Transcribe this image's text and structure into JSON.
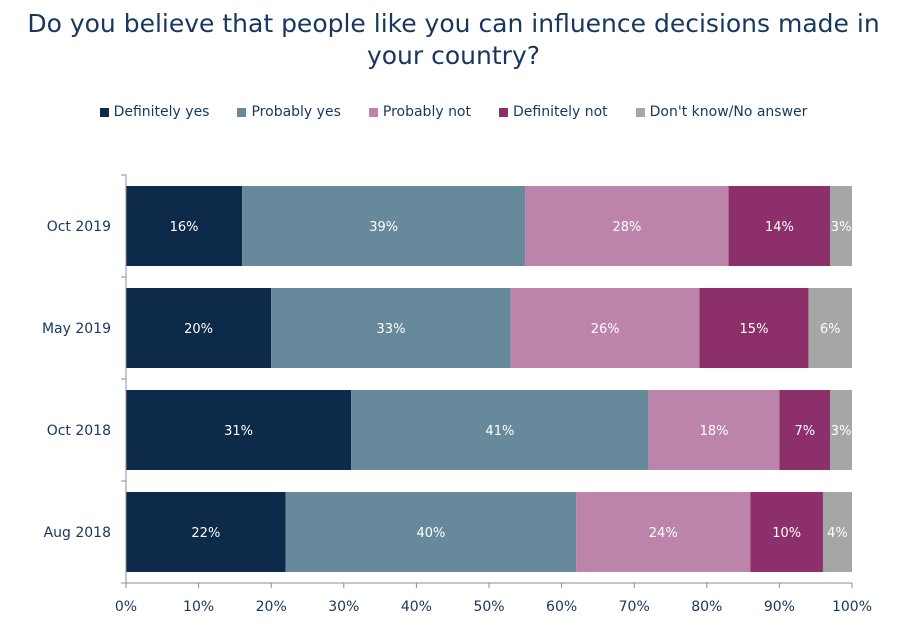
{
  "chart_data": {
    "type": "bar",
    "orientation": "horizontal",
    "stacked": true,
    "title": "Do you believe that people like you can influence decisions made in your country?",
    "categories": [
      "Oct 2019",
      "May 2019",
      "Oct 2018",
      "Aug 2018"
    ],
    "series": [
      {
        "name": "Definitely yes",
        "color": "#0e2a4a",
        "values": [
          16,
          20,
          31,
          22
        ],
        "labels": [
          "16%",
          "20%",
          "31%",
          "22%"
        ]
      },
      {
        "name": "Probably yes",
        "color": "#668a9c",
        "values": [
          39,
          33,
          41,
          40
        ],
        "labels": [
          "39%",
          "33%",
          "41%",
          "40%"
        ]
      },
      {
        "name": "Probably not",
        "color": "#bc84aa",
        "values": [
          28,
          26,
          18,
          24
        ],
        "labels": [
          "28%",
          "26%",
          "18%",
          "24%"
        ]
      },
      {
        "name": "Definitely not",
        "color": "#8c2f6b",
        "values": [
          14,
          15,
          7,
          10
        ],
        "labels": [
          "14%",
          "15%",
          "7%",
          "10%"
        ]
      },
      {
        "name": "Don't know/No answer",
        "color": "#a6a6a6",
        "values": [
          3,
          6,
          3,
          4
        ],
        "labels": [
          "3%",
          "6%",
          "3%",
          "4%"
        ]
      }
    ],
    "xlim": [
      0,
      100
    ],
    "xticks": [
      "0%",
      "10%",
      "20%",
      "30%",
      "40%",
      "50%",
      "60%",
      "70%",
      "80%",
      "90%",
      "100%"
    ],
    "legend_position": "top",
    "grid": false
  }
}
